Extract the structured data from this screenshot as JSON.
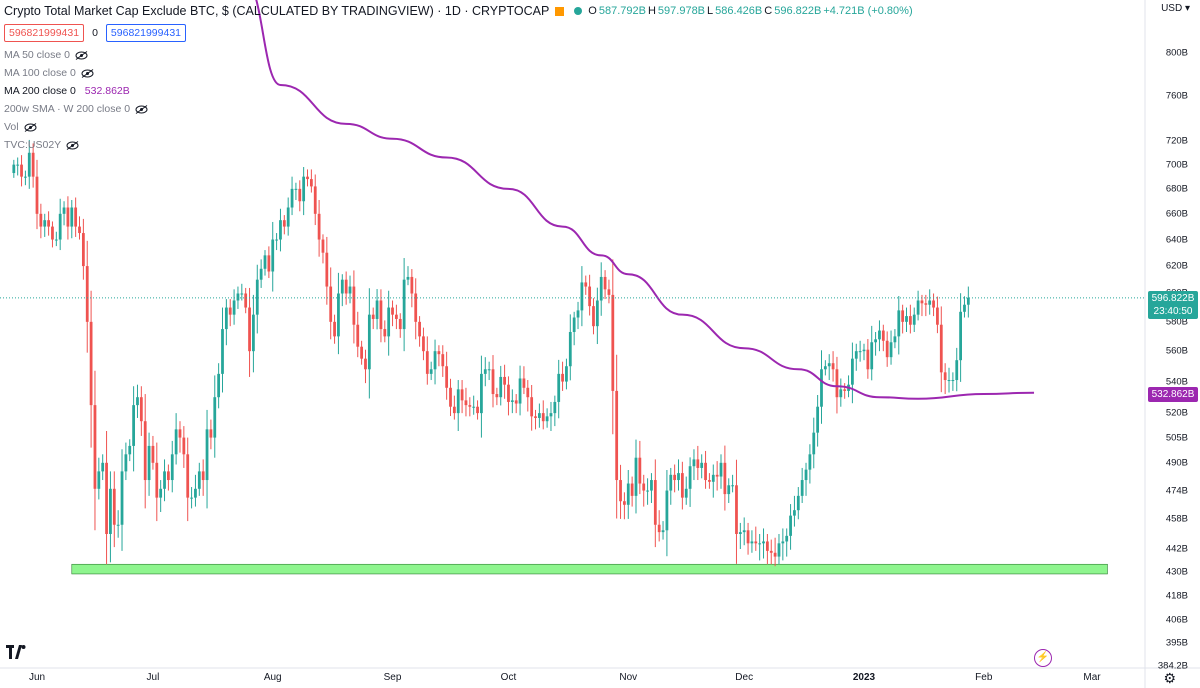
{
  "header": {
    "title": "Crypto Total Market Cap Exclude BTC, $ (CALCULATED BY TRADINGVIEW) · 1D · CRYPTOCAP",
    "ohlc": [
      {
        "label": "O",
        "value": "587.792B"
      },
      {
        "label": "H",
        "value": "597.978B"
      },
      {
        "label": "L",
        "value": "586.426B"
      },
      {
        "label": "C",
        "value": "596.822B"
      },
      {
        "label": "",
        "value": "+4.721B (+0.80%)"
      }
    ],
    "sell_price": "596821999431",
    "spread": "0",
    "buy_price": "596821999431",
    "currency": "USD"
  },
  "indicators": [
    {
      "label": "MA 50 close 0",
      "value": "",
      "hidden": true
    },
    {
      "label": "MA 100 close 0",
      "value": "",
      "hidden": true
    },
    {
      "label": "MA 200 close 0",
      "value": "532.862B",
      "hidden": false
    },
    {
      "label": "200w SMA · W 200 close 0",
      "value": "",
      "hidden": true
    },
    {
      "label": "Vol",
      "value": "",
      "hidden": true
    },
    {
      "label": "TVC:US02Y",
      "value": "",
      "hidden": true
    }
  ],
  "price_tags": {
    "current": "596.822B",
    "countdown": "23:40:50",
    "ma200": "532.862B"
  },
  "colors": {
    "up": "#26a69a",
    "down": "#ef5350",
    "ma200": "#9c27b0",
    "support_zone": "#8ef58e"
  },
  "chart_data": {
    "type": "candlestick",
    "scale": "log",
    "y_tick_labels": [
      "800B",
      "760B",
      "720B",
      "700B",
      "680B",
      "660B",
      "640B",
      "620B",
      "600B",
      "580B",
      "560B",
      "540B",
      "520B",
      "505B",
      "490B",
      "474B",
      "458B",
      "442B",
      "430B",
      "418B",
      "406B",
      "395B",
      "384.2B"
    ],
    "y_tick_values": [
      800,
      760,
      720,
      700,
      680,
      660,
      640,
      620,
      600,
      580,
      560,
      540,
      520,
      505,
      490,
      474,
      458,
      442,
      430,
      418,
      406,
      395,
      384.2
    ],
    "x_tick_labels": [
      "Jun",
      "Jul",
      "Aug",
      "Sep",
      "Oct",
      "Nov",
      "Dec",
      "2023",
      "Feb",
      "Mar"
    ],
    "x_tick_dates": [
      "2022-06-01",
      "2022-07-01",
      "2022-08-01",
      "2022-09-01",
      "2022-10-01",
      "2022-11-01",
      "2022-12-01",
      "2023-01-01",
      "2023-02-01",
      "2023-03-01"
    ],
    "candle_start": "2022-05-26",
    "closes": [
      700,
      700,
      690,
      690,
      710,
      690,
      660,
      650,
      655,
      650,
      640,
      640,
      660,
      665,
      650,
      665,
      650,
      645,
      620,
      580,
      525,
      475,
      485,
      490,
      450,
      475,
      455,
      455,
      485,
      495,
      500,
      525,
      530,
      515,
      480,
      500,
      490,
      470,
      475,
      485,
      480,
      495,
      510,
      505,
      495,
      470,
      470,
      475,
      485,
      480,
      510,
      505,
      530,
      545,
      575,
      590,
      585,
      595,
      600,
      600,
      590,
      560,
      585,
      610,
      618,
      628,
      616,
      640,
      640,
      655,
      650,
      665,
      680,
      680,
      670,
      690,
      688,
      682,
      660,
      640,
      630,
      605,
      580,
      570,
      600,
      610,
      600,
      605,
      578,
      563,
      555,
      548,
      585,
      582,
      595,
      575,
      570,
      590,
      585,
      582,
      575,
      610,
      612,
      600,
      580,
      570,
      560,
      545,
      548,
      560,
      558,
      550,
      536,
      524,
      520,
      535,
      528,
      525,
      524,
      524,
      520,
      545,
      548,
      548,
      532,
      530,
      543,
      538,
      527,
      528,
      526,
      542,
      536,
      530,
      518,
      517,
      520,
      515,
      518,
      520,
      527,
      545,
      540,
      550,
      573,
      583,
      588,
      608,
      605,
      591,
      577,
      595,
      612,
      603,
      599,
      534,
      480,
      468,
      466,
      478,
      471,
      493,
      478,
      474,
      474,
      480,
      455,
      451,
      452,
      474,
      483,
      480,
      484,
      470,
      475,
      488,
      492,
      487,
      490,
      480,
      479,
      483,
      482,
      490,
      472,
      477,
      477,
      450,
      451,
      452,
      445,
      446,
      445,
      445,
      446,
      441,
      440,
      438,
      445,
      446,
      449,
      460,
      463,
      471,
      480,
      486,
      495,
      508,
      524,
      548,
      550,
      552,
      548,
      530,
      535,
      534,
      538,
      555,
      560,
      560,
      561,
      548,
      566,
      568,
      574,
      567,
      556,
      566,
      570,
      588,
      580,
      584,
      578,
      585,
      595,
      593,
      592,
      595,
      590,
      578,
      546,
      541,
      541,
      541,
      554,
      587,
      592,
      597
    ],
    "ma200": [
      [
        "2022-07-25",
        870
      ],
      [
        "2022-08-03",
        770
      ],
      [
        "2022-08-20",
        735
      ],
      [
        "2022-09-01",
        722
      ],
      [
        "2022-09-15",
        706
      ],
      [
        "2022-10-01",
        680
      ],
      [
        "2022-10-15",
        650
      ],
      [
        "2022-10-25",
        628
      ],
      [
        "2022-11-01",
        614
      ],
      [
        "2022-11-15",
        585
      ],
      [
        "2022-12-01",
        562
      ],
      [
        "2022-12-15",
        548
      ],
      [
        "2022-12-25",
        537
      ],
      [
        "2023-01-05",
        530
      ],
      [
        "2023-01-15",
        529
      ],
      [
        "2023-02-01",
        532
      ],
      [
        "2023-02-14",
        532.862
      ]
    ],
    "current_price": 596.822,
    "support_zone": {
      "from": "2022-06-10",
      "to": "2023-03-05",
      "low": 429,
      "high": 434
    }
  },
  "time_axis": {
    "labels": [
      "Jun",
      "Jul",
      "Aug",
      "Sep",
      "Oct",
      "Nov",
      "Dec",
      "2023",
      "Feb",
      "Mar"
    ]
  }
}
